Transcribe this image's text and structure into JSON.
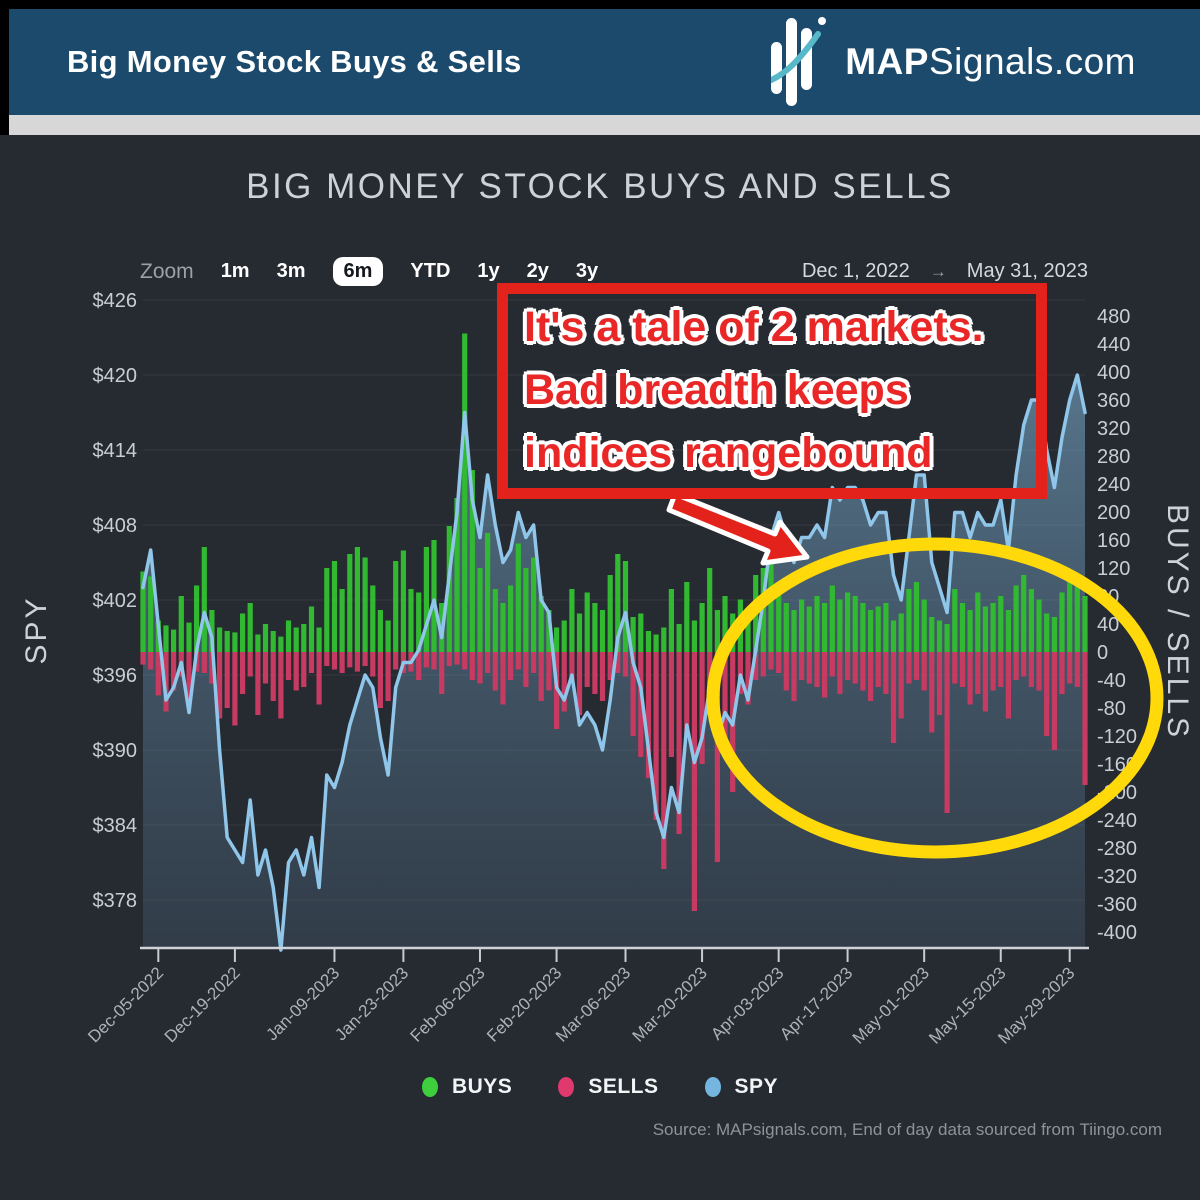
{
  "header": {
    "title": "Big Money Stock Buys & Sells",
    "brand_bold": "MAP",
    "brand_rest": "Signals.com",
    "bar_color": "#1b4a6d",
    "swoosh_color": "#57b8c9"
  },
  "chart": {
    "title": "BIG MONEY STOCK BUYS AND SELLS"
  },
  "controls": {
    "zoom_label": "Zoom",
    "options": [
      "1m",
      "3m",
      "6m",
      "YTD",
      "1y",
      "2y",
      "3y"
    ],
    "selected": "6m",
    "range_start": "Dec 1, 2022",
    "range_arrow": "→",
    "range_end": "May 31, 2023"
  },
  "annotation": {
    "lines": [
      "It's a tale of 2 markets.",
      "Bad breadth keeps",
      "indices rangebound"
    ],
    "box_color": "#e3231b",
    "text_color": "#ea2727",
    "arrow_color": "#e3231b",
    "ellipse_color": "#ffd90a"
  },
  "legend": [
    {
      "label": "BUYS",
      "color": "#3ecf3e"
    },
    {
      "label": "SELLS",
      "color": "#e0396e"
    },
    {
      "label": "SPY",
      "color": "#74b6e0"
    }
  ],
  "source": "Source: MAPsignals.com, End of day data sourced from Tiingo.com",
  "chart_data": {
    "type": "combo",
    "left_axis": {
      "title": "SPY",
      "ticks": [
        "$426",
        "$420",
        "$414",
        "$408",
        "$402",
        "$396",
        "$390",
        "$384",
        "$378"
      ],
      "range": [
        374,
        426
      ]
    },
    "right_axis": {
      "title": "BUYS / SELLS",
      "ticks": [
        "480",
        "440",
        "400",
        "360",
        "320",
        "280",
        "240",
        "200",
        "160",
        "120",
        "80",
        "40",
        "0",
        "-40",
        "-80",
        "-120",
        "-160",
        "-200",
        "-240",
        "-280",
        "-320",
        "-360",
        "-400"
      ],
      "range": [
        -400,
        480
      ]
    },
    "x_axis": {
      "tick_labels": [
        "Dec-05-2022",
        "Dec-19-2022",
        "Jan-09-2023",
        "Jan-23-2023",
        "Feb-06-2023",
        "Feb-20-2023",
        "Mar-06-2023",
        "Mar-20-2023",
        "Apr-03-2023",
        "Apr-17-2023",
        "May-01-2023",
        "May-15-2023",
        "May-29-2023"
      ],
      "tick_indices": [
        2,
        12,
        25,
        34,
        44,
        54,
        63,
        73,
        83,
        92,
        102,
        112,
        121
      ]
    },
    "series": [
      {
        "name": "BUYS",
        "type": "bar",
        "color": "#31b932",
        "values": [
          115,
          108,
          45,
          38,
          32,
          80,
          42,
          95,
          150,
          60,
          35,
          30,
          28,
          55,
          70,
          25,
          40,
          30,
          22,
          45,
          35,
          40,
          65,
          35,
          120,
          130,
          90,
          140,
          150,
          135,
          95,
          60,
          45,
          130,
          145,
          90,
          85,
          150,
          160,
          70,
          180,
          220,
          455,
          260,
          120,
          170,
          90,
          70,
          95,
          155,
          120,
          135,
          80,
          60,
          35,
          45,
          90,
          55,
          85,
          70,
          60,
          110,
          140,
          130,
          50,
          55,
          30,
          25,
          35,
          90,
          40,
          100,
          45,
          70,
          120,
          60,
          80,
          55,
          75,
          50,
          110,
          120,
          140,
          95,
          70,
          60,
          75,
          65,
          80,
          70,
          95,
          75,
          85,
          80,
          70,
          60,
          65,
          70,
          45,
          55,
          90,
          100,
          75,
          50,
          45,
          40,
          90,
          70,
          60,
          85,
          65,
          70,
          80,
          60,
          95,
          110,
          90,
          75,
          55,
          50,
          85,
          100,
          105,
          80
        ]
      },
      {
        "name": "SELLS",
        "type": "bar",
        "color": "#c73a62",
        "values": [
          -18,
          -25,
          -62,
          -85,
          -55,
          -35,
          -70,
          -28,
          -30,
          -45,
          -95,
          -80,
          -105,
          -60,
          -35,
          -90,
          -45,
          -70,
          -95,
          -40,
          -55,
          -50,
          -30,
          -75,
          -20,
          -25,
          -30,
          -22,
          -28,
          -20,
          -35,
          -80,
          -70,
          -25,
          -30,
          -28,
          -40,
          -22,
          -25,
          -60,
          -20,
          -18,
          -25,
          -40,
          -45,
          -30,
          -55,
          -75,
          -40,
          -25,
          -50,
          -30,
          -70,
          -55,
          -110,
          -85,
          -45,
          -90,
          -50,
          -60,
          -70,
          -40,
          -30,
          -35,
          -120,
          -150,
          -180,
          -240,
          -310,
          -150,
          -260,
          -120,
          -370,
          -160,
          -90,
          -300,
          -130,
          -200,
          -60,
          -75,
          -40,
          -35,
          -25,
          -30,
          -55,
          -70,
          -40,
          -45,
          -50,
          -65,
          -35,
          -60,
          -40,
          -45,
          -55,
          -70,
          -50,
          -60,
          -130,
          -95,
          -45,
          -40,
          -55,
          -115,
          -90,
          -230,
          -45,
          -50,
          -75,
          -60,
          -85,
          -55,
          -50,
          -95,
          -40,
          -35,
          -50,
          -55,
          -120,
          -140,
          -60,
          -45,
          -50,
          -190
        ]
      },
      {
        "name": "SPY",
        "type": "line",
        "color": "#8fc6ea",
        "values": [
          403,
          406,
          400,
          394,
          395,
          397,
          393,
          398,
          401,
          399,
          390,
          383,
          382,
          381,
          386,
          380,
          382,
          379,
          374,
          381,
          382,
          380,
          383,
          379,
          388,
          387,
          389,
          392,
          394,
          396,
          395,
          391,
          388,
          395,
          397,
          397,
          398,
          400,
          402,
          399,
          404,
          409,
          417,
          410,
          407,
          412,
          408,
          405,
          406,
          409,
          407,
          408,
          402,
          401,
          395,
          394,
          396,
          392,
          393,
          392,
          390,
          394,
          399,
          401,
          397,
          395,
          390,
          385,
          383,
          387,
          385,
          392,
          389,
          391,
          395,
          391,
          393,
          392,
          396,
          394,
          398,
          402,
          407,
          409,
          407,
          405,
          407,
          407,
          408,
          407,
          411,
          410,
          411,
          411,
          410,
          408,
          409,
          409,
          404,
          402,
          407,
          412,
          412,
          405,
          403,
          401,
          409,
          409,
          407,
          409,
          408,
          408,
          410,
          406,
          412,
          416,
          418,
          418,
          414,
          411,
          415,
          418,
          420,
          417
        ]
      }
    ]
  }
}
